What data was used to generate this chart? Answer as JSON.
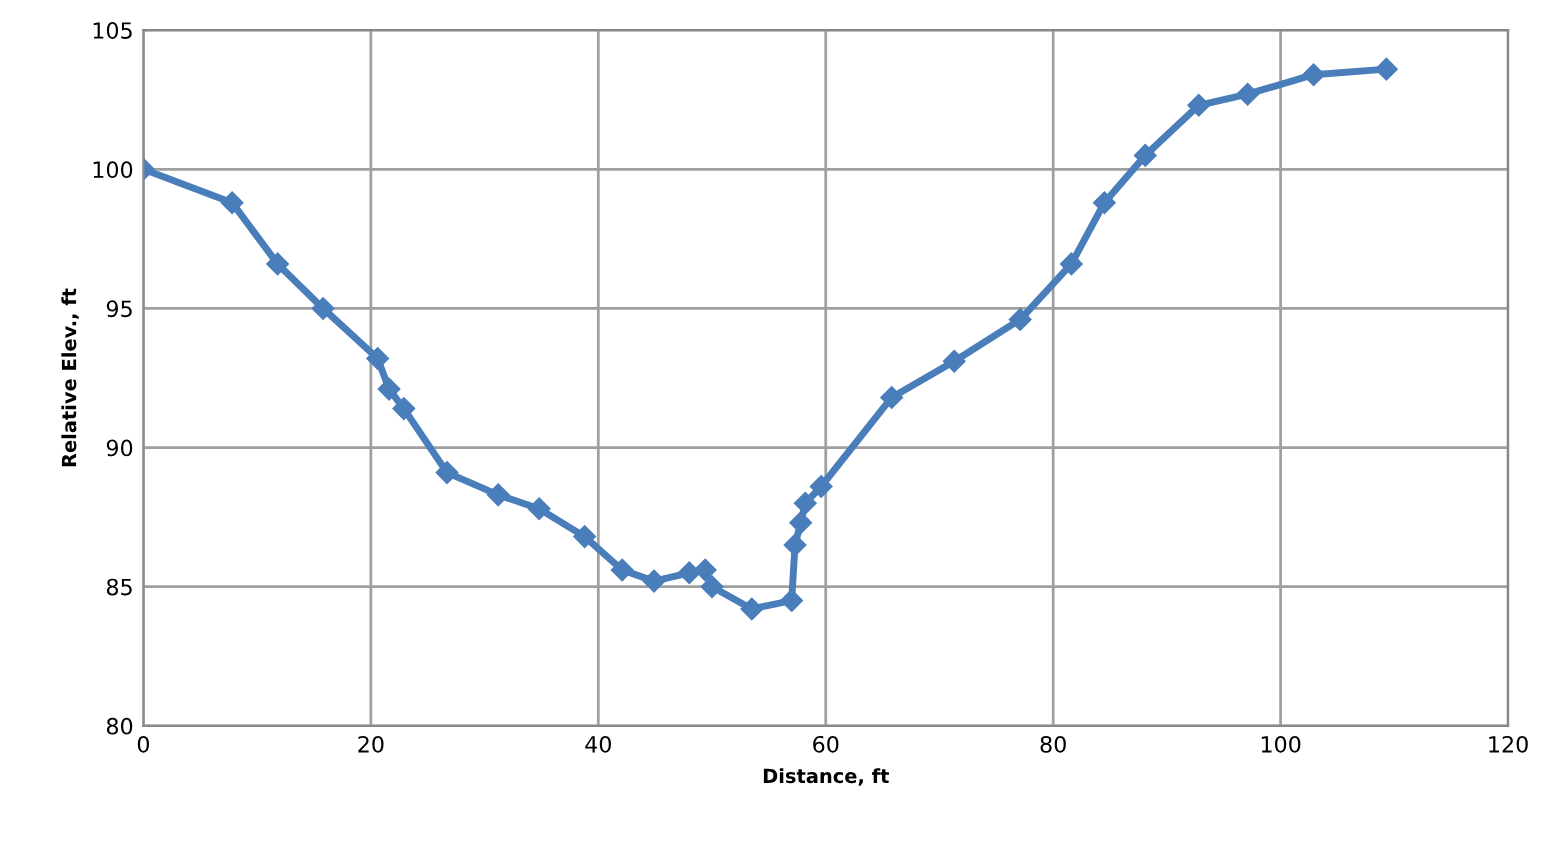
{
  "chart_data": {
    "type": "line",
    "xlabel": "Distance, ft",
    "ylabel": "Relative Elev., ft",
    "series": [
      {
        "color": "#4a7ebb",
        "x": [
          0,
          7.8,
          11.8,
          15.8,
          20.6,
          21.6,
          22.9,
          26.7,
          31.2,
          34.8,
          38.8,
          42.1,
          44.9,
          48.0,
          49.4,
          50.0,
          53.5,
          57.0,
          57.3,
          57.8,
          58.2,
          59.6,
          65.8,
          71.3,
          77.1,
          81.6,
          84.5,
          88.1,
          92.8,
          97.1,
          102.9,
          109.3
        ],
        "values": [
          100,
          98.8,
          96.6,
          95.0,
          93.2,
          92.1,
          91.4,
          89.1,
          88.3,
          87.8,
          86.8,
          85.6,
          85.2,
          85.5,
          85.6,
          85.0,
          84.2,
          84.5,
          86.5,
          87.3,
          88.0,
          88.6,
          91.8,
          93.1,
          94.6,
          96.6,
          98.8,
          100.5,
          102.3,
          102.7,
          103.4,
          103.6
        ]
      }
    ],
    "xlim": [
      0,
      120
    ],
    "xticks": [
      0,
      20,
      40,
      60,
      80,
      100,
      120
    ],
    "ylim": [
      80,
      105
    ],
    "yticks": [
      80,
      85,
      90,
      95,
      100,
      105
    ],
    "grid": true,
    "marker": "diamond",
    "line_style": "solid"
  }
}
